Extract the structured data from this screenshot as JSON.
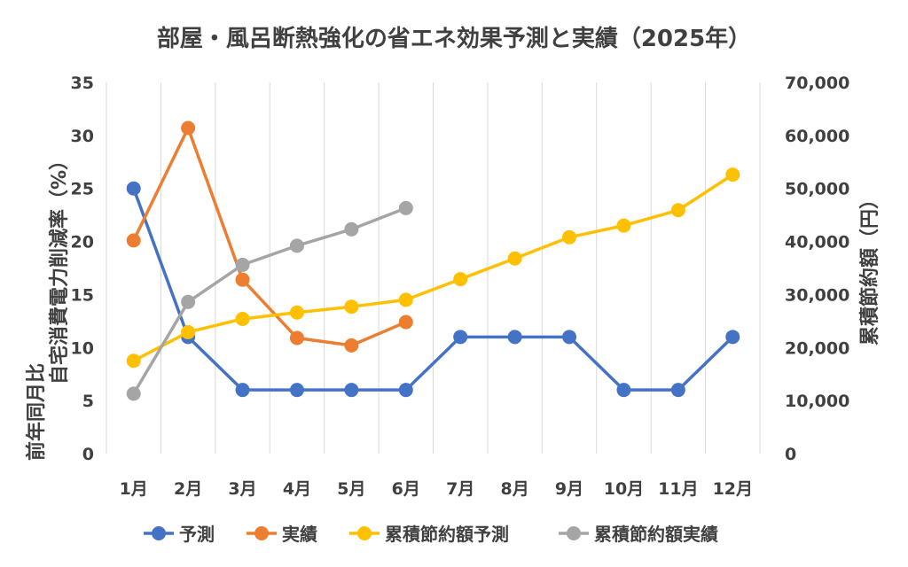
{
  "chart_data": {
    "type": "line",
    "title": "部屋・風呂断熱強化の省エネ効果予測と実績（2025年）",
    "categories": [
      "1月",
      "2月",
      "3月",
      "4月",
      "5月",
      "6月",
      "7月",
      "8月",
      "9月",
      "10月",
      "11月",
      "12月"
    ],
    "y_left": {
      "label_line1": "自宅消費電力削減率（%）",
      "label_line2": "前年同月比",
      "range": [
        0,
        35
      ],
      "ticks": [
        "0",
        "5",
        "10",
        "15",
        "20",
        "25",
        "30",
        "35"
      ]
    },
    "y_right": {
      "label": "累積節約額（円）",
      "range": [
        0,
        70000
      ],
      "ticks": [
        "0",
        "10,000",
        "20,000",
        "30,000",
        "40,000",
        "50,000",
        "60,000",
        "70,000"
      ]
    },
    "grid": "vertical",
    "legend_position": "bottom",
    "series": [
      {
        "name": "予測",
        "axis": "left",
        "color": "#4472C4",
        "x": [
          0.5,
          1.5,
          2.5,
          3.5,
          4.5,
          5.5,
          6.5,
          7.5,
          8.5,
          9.5,
          10.5,
          11.5
        ],
        "values": [
          25,
          11,
          6,
          6,
          6,
          6,
          11,
          11,
          11,
          6,
          6,
          11
        ]
      },
      {
        "name": "実績",
        "axis": "left",
        "color": "#ED7D31",
        "x": [
          0.5,
          1.5,
          2.5,
          3.5,
          4.5,
          5.5
        ],
        "values": [
          20.1,
          30.7,
          16.4,
          10.9,
          10.2,
          12.4
        ]
      },
      {
        "name": "累積節約額予測",
        "axis": "right",
        "color": "#FFC000",
        "x": [
          0.5,
          1.5,
          2.5,
          3.5,
          4.5,
          5.5,
          6.5,
          7.5,
          8.5,
          9.5,
          10.5,
          11.5
        ],
        "values": [
          17500,
          22900,
          25400,
          26600,
          27700,
          29000,
          32900,
          36800,
          40800,
          43000,
          45900,
          52600
        ]
      },
      {
        "name": "累積節約額実績",
        "axis": "right",
        "color": "#A5A5A5",
        "x": [
          0.5,
          1.5,
          2.5,
          3.5,
          4.5,
          5.5
        ],
        "values": [
          11300,
          28600,
          35600,
          39200,
          42300,
          46300
        ]
      }
    ]
  }
}
